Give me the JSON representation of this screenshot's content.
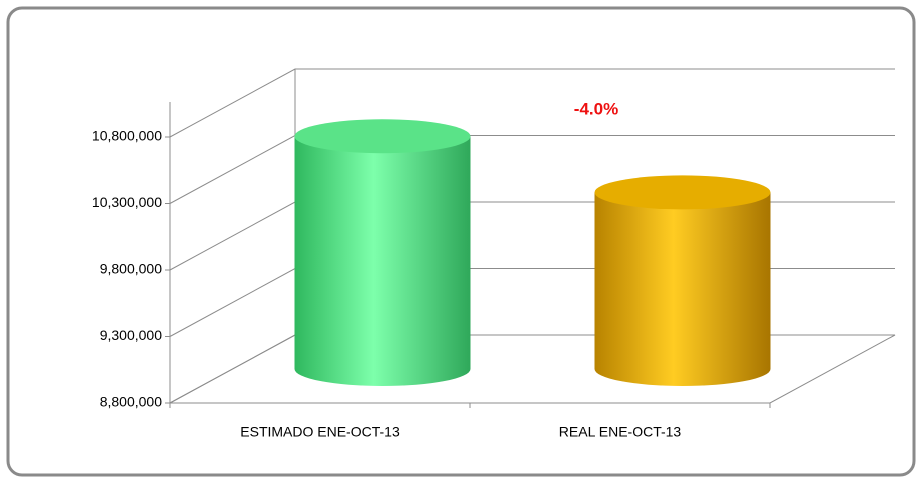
{
  "chart_data": {
    "type": "bar",
    "shape": "cylinder",
    "categories": [
      "ESTIMADO ENE-OCT-13",
      "REAL ENE-OCT-13"
    ],
    "values": [
      10550000,
      10128000
    ],
    "colors": [
      "#5fef8f",
      "#f2b600"
    ],
    "annotation": "-4.0%",
    "ylim": [
      8800000,
      10800000
    ],
    "yticks": [
      {
        "value": 8800000,
        "label": "8,800,000"
      },
      {
        "value": 9300000,
        "label": "9,300,000"
      },
      {
        "value": 9800000,
        "label": "9,800,000"
      },
      {
        "value": 10300000,
        "label": "10,300,000"
      },
      {
        "value": 10800000,
        "label": "10,800,000"
      }
    ],
    "grid": true
  }
}
